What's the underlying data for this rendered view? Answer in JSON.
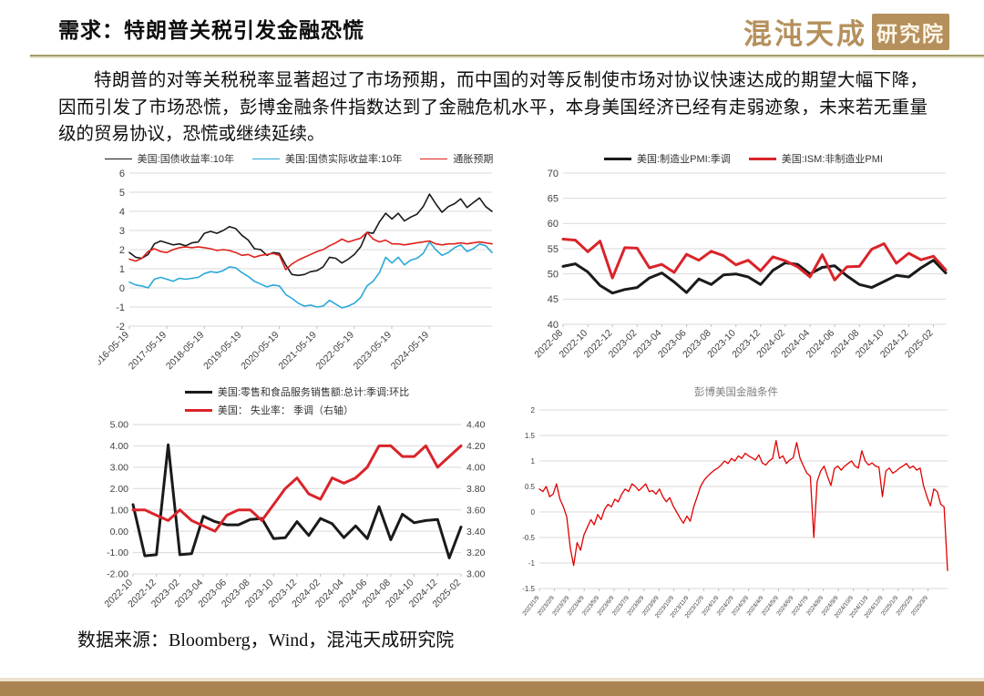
{
  "header": {
    "title": "需求：特朗普关税引发金融恐慌",
    "logo_script": "混沌天成",
    "logo_block": "研究院",
    "brand_gold": "#b5905c"
  },
  "paragraph": "特朗普的对等关税税率显著超过了市场预期，而中国的对等反制使市场对协议快速达成的期望大幅下降，因而引发了市场恐慌，彭博金融条件指数达到了金融危机水平，本身美国经济已经有走弱迹象，未来若无重量级的贸易协议，恐慌或继续延续。",
  "footer": {
    "source": "数据来源：Bloomberg，Wind，混沌天成研究院"
  },
  "chart_data": [
    {
      "type": "line",
      "name": "us-treasury-yields",
      "legend": [
        {
          "label": "美国:国债收益率:10年",
          "color": "#1a1a1a"
        },
        {
          "label": "美国:国债实际收益率:10年",
          "color": "#29a8d8"
        },
        {
          "label": "通胀预期",
          "color": "#e0201c"
        }
      ],
      "ylim": [
        -2,
        6
      ],
      "yticks": [
        "6",
        "5",
        "4",
        "3",
        "2",
        "1",
        "0",
        "-1",
        "-2"
      ],
      "xlabels": [
        "2016-05-19",
        "2017-05-19",
        "2018-05-19",
        "2019-05-19",
        "2020-05-19",
        "2021-05-19",
        "2022-05-19",
        "2023-05-19",
        "2024-05-19"
      ],
      "grid": true,
      "legend_position": "top",
      "series": [
        {
          "name": "美国:国债收益率:10年",
          "color": "#1a1a1a",
          "width": 1.6,
          "values": [
            1.85,
            1.6,
            1.55,
            1.75,
            2.3,
            2.45,
            2.35,
            2.25,
            2.3,
            2.2,
            2.35,
            2.4,
            2.85,
            2.95,
            2.85,
            3.0,
            3.2,
            3.1,
            2.75,
            2.5,
            2.05,
            2.0,
            1.7,
            1.85,
            1.8,
            1.2,
            0.7,
            0.65,
            0.7,
            0.85,
            0.9,
            1.1,
            1.6,
            1.55,
            1.3,
            1.5,
            1.75,
            2.15,
            2.9,
            2.85,
            3.45,
            3.9,
            3.6,
            3.9,
            3.5,
            3.7,
            3.85,
            4.25,
            4.9,
            4.4,
            3.95,
            4.25,
            4.4,
            4.65,
            4.2,
            4.45,
            4.7,
            4.25,
            4.0
          ]
        },
        {
          "name": "美国:国债实际收益率:10年",
          "color": "#29a8d8",
          "width": 1.6,
          "values": [
            0.3,
            0.15,
            0.1,
            0.0,
            0.45,
            0.55,
            0.45,
            0.35,
            0.5,
            0.45,
            0.5,
            0.55,
            0.75,
            0.85,
            0.8,
            0.9,
            1.1,
            1.05,
            0.8,
            0.6,
            0.35,
            0.2,
            0.05,
            0.15,
            0.1,
            -0.35,
            -0.55,
            -0.8,
            -0.95,
            -0.9,
            -1.0,
            -0.95,
            -0.65,
            -0.85,
            -1.05,
            -0.95,
            -0.8,
            -0.5,
            0.1,
            0.35,
            0.8,
            1.6,
            1.3,
            1.6,
            1.2,
            1.45,
            1.55,
            1.8,
            2.4,
            2.0,
            1.7,
            1.85,
            2.1,
            2.25,
            1.9,
            2.05,
            2.3,
            2.2,
            1.85
          ]
        },
        {
          "name": "通胀预期",
          "color": "#e0201c",
          "width": 1.6,
          "values": [
            1.5,
            1.4,
            1.55,
            1.9,
            2.05,
            1.9,
            1.85,
            2.0,
            2.1,
            2.15,
            2.1,
            2.15,
            2.1,
            2.05,
            1.95,
            2.0,
            1.95,
            1.85,
            1.7,
            1.75,
            1.6,
            1.7,
            1.75,
            1.8,
            1.7,
            0.95,
            1.25,
            1.45,
            1.6,
            1.75,
            1.9,
            2.0,
            2.2,
            2.35,
            2.55,
            2.4,
            2.5,
            2.6,
            2.9,
            2.55,
            2.4,
            2.5,
            2.3,
            2.3,
            2.25,
            2.3,
            2.35,
            2.4,
            2.45,
            2.3,
            2.25,
            2.3,
            2.3,
            2.35,
            2.3,
            2.35,
            2.4,
            2.35,
            2.3
          ]
        }
      ]
    },
    {
      "type": "line",
      "name": "us-pmi",
      "legend": [
        {
          "label": "美国:制造业PMI:季调",
          "color": "#1a1a1a"
        },
        {
          "label": "美国:ISM:非制造业PMI",
          "color": "#d9242a"
        }
      ],
      "ylim": [
        40,
        70
      ],
      "yticks": [
        "70",
        "65",
        "60",
        "55",
        "50",
        "45",
        "40"
      ],
      "xlabels": [
        "2022-08",
        "2022-10",
        "2022-12",
        "2023-02",
        "2023-04",
        "2023-06",
        "2023-08",
        "2023-10",
        "2023-12",
        "2024-02",
        "2024-04",
        "2024-06",
        "2024-08",
        "2024-10",
        "2024-12",
        "2025-02"
      ],
      "grid": true,
      "legend_position": "top",
      "series": [
        {
          "name": "美国:制造业PMI:季调",
          "color": "#1a1a1a",
          "width": 3,
          "values": [
            51.5,
            52.0,
            50.4,
            47.7,
            46.2,
            46.9,
            47.3,
            49.2,
            50.2,
            48.4,
            46.3,
            49.0,
            47.9,
            49.8,
            50.0,
            49.4,
            47.9,
            50.7,
            52.2,
            51.9,
            50.0,
            51.3,
            51.6,
            49.6,
            47.9,
            47.3,
            48.5,
            49.7,
            49.4,
            51.2,
            52.7,
            50.2
          ]
        },
        {
          "name": "美国:ISM:非制造业PMI",
          "color": "#d9242a",
          "width": 3,
          "values": [
            56.9,
            56.7,
            54.4,
            56.5,
            49.2,
            55.2,
            55.1,
            51.2,
            51.9,
            50.3,
            53.9,
            52.7,
            54.5,
            53.6,
            51.8,
            52.7,
            50.6,
            53.4,
            52.6,
            51.4,
            49.4,
            53.8,
            48.8,
            51.4,
            51.5,
            54.9,
            56.0,
            52.1,
            54.1,
            52.8,
            53.5,
            50.8
          ]
        }
      ]
    },
    {
      "type": "line",
      "name": "us-retail-and-unemployment",
      "legend": [
        {
          "label": "美国:零售和食品服务销售额:总计:季调:环比",
          "color": "#1a1a1a"
        },
        {
          "label": "美国： 失业率： 季调（右轴）",
          "color": "#d9242a"
        }
      ],
      "ylim": [
        -2,
        5
      ],
      "yticks": [
        "5.00",
        "4.00",
        "3.00",
        "2.00",
        "1.00",
        "0.00",
        "-1.00",
        "-2.00"
      ],
      "y2lim": [
        3.0,
        4.4
      ],
      "y2ticks": [
        "4.40",
        "4.20",
        "4.00",
        "3.80",
        "3.60",
        "3.40",
        "3.20",
        "3.00"
      ],
      "xlabels": [
        "2022-10",
        "2022-12",
        "2023-02",
        "2023-04",
        "2023-06",
        "2023-08",
        "2023-10",
        "2023-12",
        "2024-02",
        "2024-04",
        "2024-06",
        "2024-08",
        "2024-10",
        "2024-12",
        "2025-02"
      ],
      "grid": true,
      "legend_position": "top",
      "series": [
        {
          "name": "美国:零售和食品服务销售额:总计:季调:环比",
          "color": "#1a1a1a",
          "width": 3,
          "values": [
            1.25,
            -1.15,
            -1.1,
            4.05,
            -1.1,
            -1.05,
            0.7,
            0.45,
            0.3,
            0.3,
            0.55,
            0.6,
            -0.35,
            -0.3,
            0.45,
            -0.2,
            0.6,
            0.35,
            -0.3,
            0.25,
            -0.35,
            1.15,
            -0.4,
            0.8,
            0.4,
            0.5,
            0.55,
            -1.25,
            0.2
          ]
        },
        {
          "name": "美国： 失业率： 季调（右轴）",
          "color": "#d9242a",
          "width": 3,
          "axis": "right",
          "values": [
            3.6,
            3.6,
            3.55,
            3.5,
            3.6,
            3.5,
            3.45,
            3.4,
            3.55,
            3.6,
            3.6,
            3.5,
            3.65,
            3.8,
            3.9,
            3.75,
            3.7,
            3.9,
            3.85,
            3.9,
            4.0,
            4.2,
            4.2,
            4.1,
            4.1,
            4.2,
            4.0,
            4.1,
            4.2
          ]
        }
      ]
    },
    {
      "type": "line",
      "name": "bloomberg-us-financial-conditions",
      "title": "彭博美国金融条件",
      "ylim": [
        -1.5,
        2
      ],
      "yticks": [
        "2",
        "1.5",
        "1",
        "0.5",
        "0",
        "-0.5",
        "-1",
        "-1.5"
      ],
      "xlabels": [
        "2023/1/9",
        "2023/2/9",
        "2023/3/9",
        "2023/4/9",
        "2023/5/9",
        "2023/6/9",
        "2023/7/9",
        "2023/8/9",
        "2023/9/9",
        "2023/10/9",
        "2023/11/9",
        "2023/12/9",
        "2024/1/9",
        "2024/2/9",
        "2024/3/9",
        "2024/4/9",
        "2024/5/9",
        "2024/6/9",
        "2024/7/9",
        "2024/8/9",
        "2024/9/9",
        "2024/10/9",
        "2024/11/9",
        "2024/12/9",
        "2025/1/9",
        "2025/2/9",
        "2025/3/9"
      ],
      "grid": true,
      "series": [
        {
          "name": "彭博美国金融条件",
          "color": "#e00000",
          "width": 1.3,
          "values": [
            0.45,
            0.4,
            0.5,
            0.3,
            0.35,
            0.55,
            0.25,
            0.1,
            -0.1,
            -0.7,
            -1.05,
            -0.6,
            -0.75,
            -0.45,
            -0.3,
            -0.15,
            -0.25,
            -0.05,
            -0.15,
            0.05,
            0.15,
            0.1,
            0.25,
            0.2,
            0.35,
            0.45,
            0.4,
            0.55,
            0.5,
            0.42,
            0.48,
            0.55,
            0.4,
            0.42,
            0.35,
            0.45,
            0.3,
            0.2,
            0.28,
            0.12,
            0.0,
            -0.12,
            -0.22,
            -0.08,
            -0.18,
            0.1,
            0.3,
            0.5,
            0.62,
            0.7,
            0.76,
            0.82,
            0.86,
            0.92,
            1.0,
            0.95,
            1.05,
            1.0,
            1.1,
            1.05,
            1.15,
            1.1,
            1.06,
            1.02,
            1.12,
            0.96,
            0.92,
            1.0,
            1.05,
            1.4,
            1.05,
            1.1,
            0.95,
            1.02,
            1.06,
            1.36,
            1.05,
            0.9,
            0.76,
            0.7,
            -0.5,
            0.6,
            0.8,
            0.9,
            0.7,
            0.52,
            0.85,
            0.9,
            0.82,
            0.9,
            0.95,
            1.0,
            0.9,
            0.86,
            1.2,
            1.0,
            0.92,
            0.96,
            0.9,
            0.88,
            0.3,
            0.8,
            0.86,
            0.76,
            0.8,
            0.86,
            0.9,
            0.95,
            0.86,
            0.9,
            0.82,
            0.86,
            0.52,
            0.3,
            0.12,
            0.45,
            0.4,
            0.15,
            0.1,
            -1.15
          ]
        }
      ]
    }
  ]
}
